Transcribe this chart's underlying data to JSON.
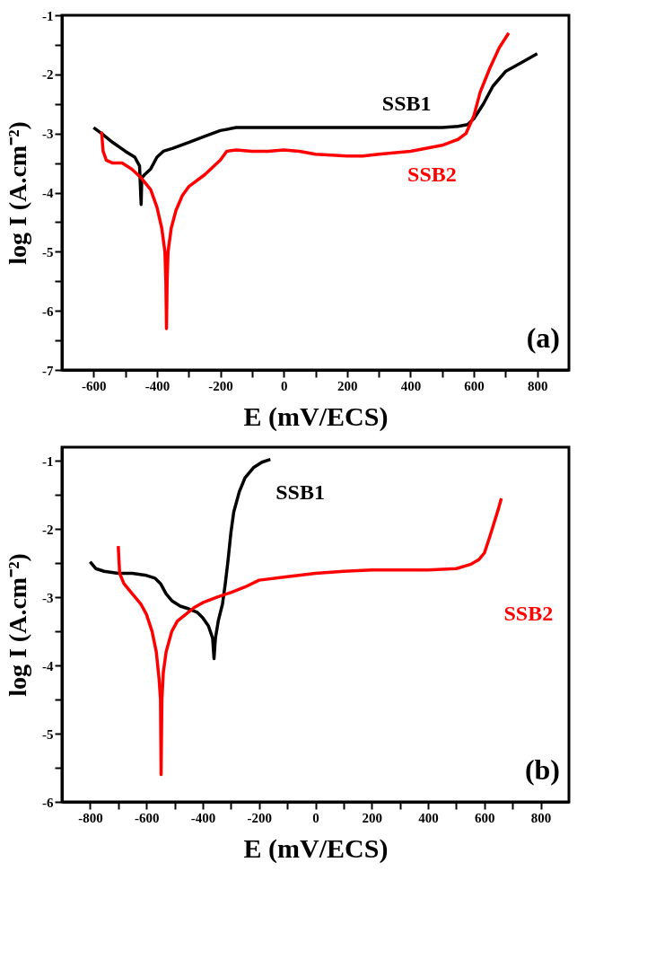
{
  "chart_data": [
    {
      "type": "line",
      "xlabel": "E (mV/ECS)",
      "ylabel": "log I (A.cm⁻²)",
      "annotations": [
        "(a)"
      ],
      "xlim": [
        -700,
        900
      ],
      "ylim": [
        -7,
        -1
      ],
      "xticks": [
        -600,
        {
          "value": -500,
          "label": null
        },
        -400,
        {
          "value": -300,
          "label": null
        },
        -200,
        {
          "value": -100,
          "label": null
        },
        0,
        {
          "value": 100,
          "label": null
        },
        200,
        {
          "value": 300,
          "label": null
        },
        400,
        {
          "value": 500,
          "label": null
        },
        600,
        {
          "value": 700,
          "label": null
        },
        800
      ],
      "yticks": [
        -7,
        {
          "value": -6.5,
          "label": null
        },
        -6,
        {
          "value": -5.5,
          "label": null
        },
        -5,
        {
          "value": -4.5,
          "label": null
        },
        -4,
        {
          "value": -3.5,
          "label": null
        },
        -3,
        {
          "value": -2.5,
          "label": null
        },
        -2,
        {
          "value": -1.5,
          "label": null
        },
        -1
      ],
      "series": [
        {
          "name": "SSB1",
          "color": "#000000",
          "x": [
            -600,
            -575,
            -540,
            -500,
            -470,
            -455,
            -450,
            -448,
            -440,
            -420,
            -400,
            -380,
            -350,
            -300,
            -250,
            -200,
            -150,
            -100,
            0,
            200,
            400,
            500,
            550,
            580,
            600,
            630,
            660,
            700,
            750,
            800
          ],
          "values": [
            -2.9,
            -3.0,
            -3.15,
            -3.3,
            -3.4,
            -3.55,
            -4.2,
            -3.75,
            -3.7,
            -3.6,
            -3.4,
            -3.3,
            -3.25,
            -3.15,
            -3.05,
            -2.95,
            -2.9,
            -2.9,
            -2.9,
            -2.9,
            -2.9,
            -2.9,
            -2.88,
            -2.85,
            -2.75,
            -2.5,
            -2.2,
            -1.95,
            -1.8,
            -1.65
          ]
        },
        {
          "name": "SSB2",
          "color": "#ff0000",
          "x": [
            -575,
            -570,
            -560,
            -540,
            -510,
            -480,
            -450,
            -420,
            -400,
            -385,
            -375,
            -372,
            -370,
            -368,
            -365,
            -355,
            -340,
            -320,
            -300,
            -250,
            -200,
            -180,
            -150,
            -100,
            -50,
            0,
            50,
            100,
            200,
            250,
            300,
            400,
            500,
            550,
            575,
            600,
            620,
            650,
            680,
            710
          ],
          "values": [
            -2.97,
            -3.3,
            -3.45,
            -3.5,
            -3.5,
            -3.6,
            -3.75,
            -3.95,
            -4.25,
            -4.6,
            -5.0,
            -5.5,
            -6.3,
            -5.5,
            -5.0,
            -4.6,
            -4.3,
            -4.05,
            -3.9,
            -3.7,
            -3.45,
            -3.3,
            -3.28,
            -3.3,
            -3.3,
            -3.28,
            -3.3,
            -3.35,
            -3.38,
            -3.38,
            -3.35,
            -3.3,
            -3.2,
            -3.1,
            -3.0,
            -2.7,
            -2.3,
            -1.9,
            -1.55,
            -1.3
          ]
        }
      ]
    },
    {
      "type": "line",
      "xlabel": "E (mV/ECS)",
      "ylabel": "log I (A.cm⁻²)",
      "annotations": [
        "(b)"
      ],
      "xlim": [
        -900,
        900
      ],
      "ylim": [
        -6,
        -0.8
      ],
      "xticks": [
        -800,
        {
          "value": -700,
          "label": null
        },
        -600,
        {
          "value": -500,
          "label": null
        },
        -400,
        {
          "value": -300,
          "label": null
        },
        -200,
        {
          "value": -100,
          "label": null
        },
        0,
        {
          "value": 100,
          "label": null
        },
        200,
        {
          "value": 300,
          "label": null
        },
        400,
        {
          "value": 500,
          "label": null
        },
        600,
        {
          "value": 700,
          "label": null
        },
        800
      ],
      "yticks": [
        -6,
        {
          "value": -5.5,
          "label": null
        },
        -5,
        {
          "value": -4.5,
          "label": null
        },
        -4,
        {
          "value": -3.5,
          "label": null
        },
        -3,
        {
          "value": -2.5,
          "label": null
        },
        -2,
        {
          "value": -1.5,
          "label": null
        },
        -1
      ],
      "series": [
        {
          "name": "SSB1",
          "color": "#000000",
          "x": [
            -800,
            -780,
            -750,
            -700,
            -650,
            -600,
            -570,
            -550,
            -530,
            -510,
            -480,
            -450,
            -420,
            -400,
            -380,
            -365,
            -360,
            -355,
            -345,
            -330,
            -320,
            -310,
            -300,
            -290,
            -270,
            -250,
            -220,
            -190,
            -160
          ],
          "values": [
            -2.48,
            -2.58,
            -2.62,
            -2.65,
            -2.65,
            -2.68,
            -2.72,
            -2.8,
            -2.95,
            -3.05,
            -3.13,
            -3.17,
            -3.22,
            -3.3,
            -3.42,
            -3.6,
            -3.9,
            -3.6,
            -3.35,
            -3.1,
            -2.8,
            -2.45,
            -2.05,
            -1.75,
            -1.45,
            -1.25,
            -1.1,
            -1.02,
            -0.98
          ]
        },
        {
          "name": "SSB2",
          "color": "#ff0000",
          "x": [
            -700,
            -695,
            -680,
            -650,
            -620,
            -600,
            -580,
            -565,
            -555,
            -550,
            -548,
            -545,
            -540,
            -530,
            -510,
            -490,
            -460,
            -430,
            -400,
            -350,
            -300,
            -250,
            -200,
            -100,
            0,
            100,
            200,
            300,
            400,
            500,
            550,
            580,
            600,
            620,
            650,
            660
          ],
          "values": [
            -2.25,
            -2.65,
            -2.8,
            -2.95,
            -3.1,
            -3.25,
            -3.5,
            -3.8,
            -4.2,
            -4.5,
            -5.6,
            -4.5,
            -4.1,
            -3.8,
            -3.5,
            -3.35,
            -3.25,
            -3.15,
            -3.08,
            -3.0,
            -2.93,
            -2.85,
            -2.75,
            -2.7,
            -2.65,
            -2.62,
            -2.6,
            -2.6,
            -2.6,
            -2.58,
            -2.52,
            -2.45,
            -2.35,
            -2.1,
            -1.7,
            -1.55
          ]
        }
      ]
    }
  ]
}
